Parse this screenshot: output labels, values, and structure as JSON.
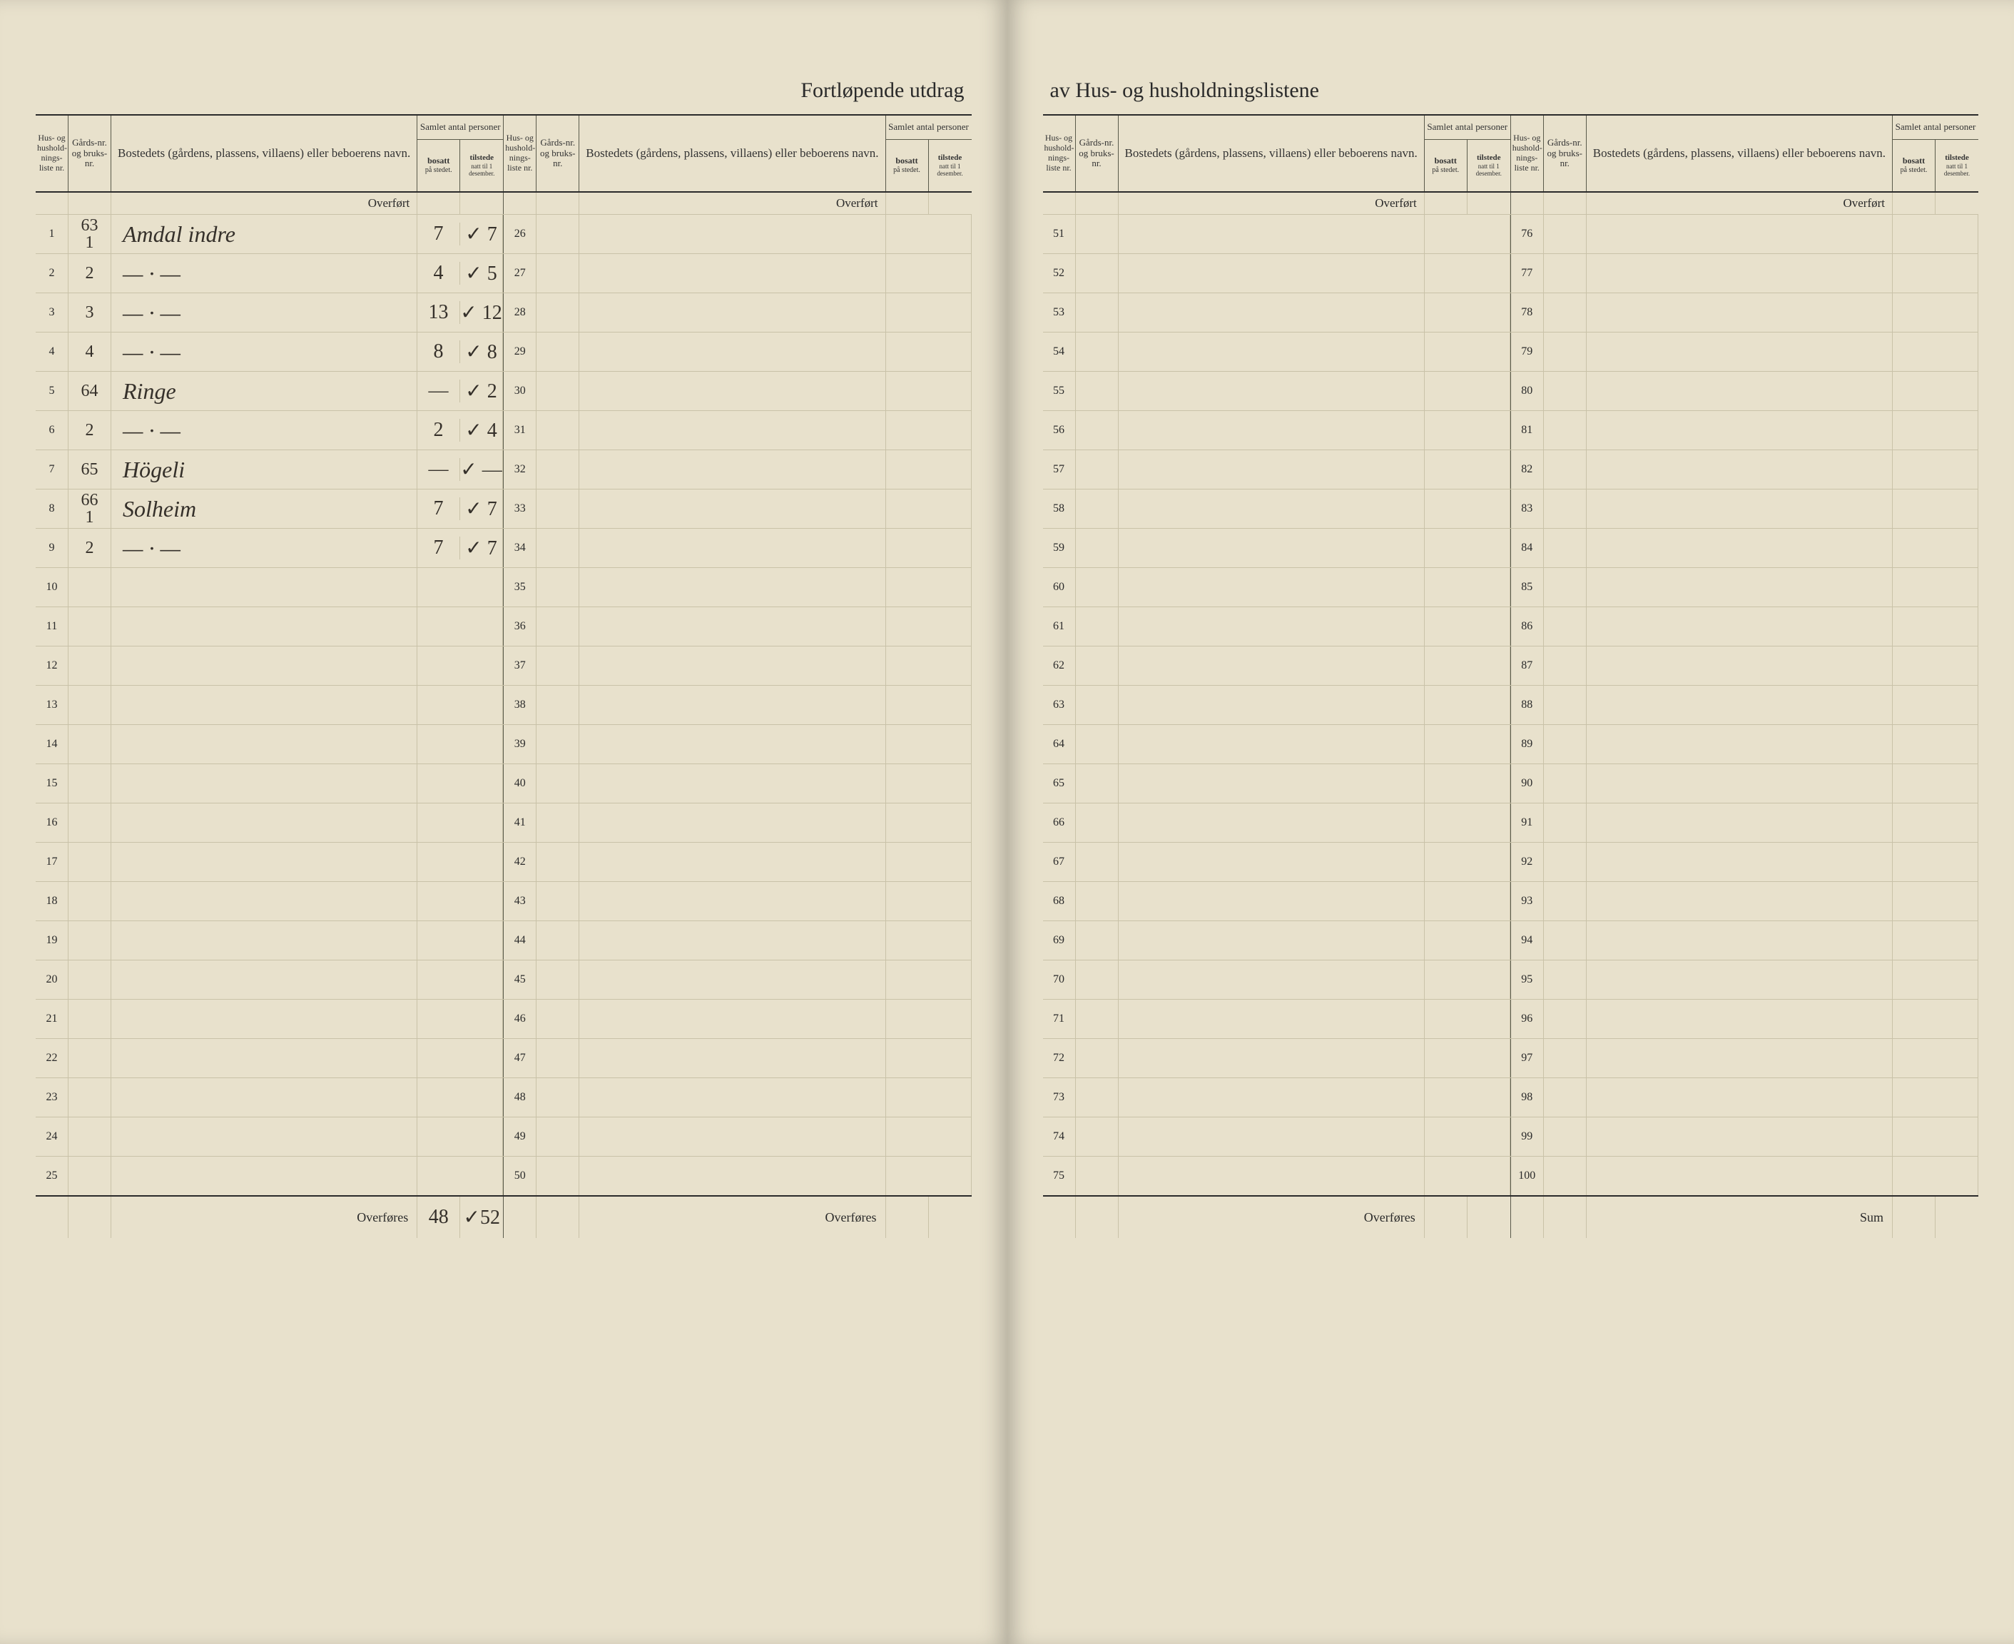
{
  "title_left": "Fortløpende utdrag",
  "title_right": "av Hus- og husholdningslistene",
  "headers": {
    "liste": "Hus- og hushold-nings-liste nr.",
    "gard": "Gårds-nr. og bruks-nr.",
    "name": "Bostedets (gårdens, plassens, villaens) eller beboerens navn.",
    "count_top": "Samlet antal personer",
    "bosatt": "bosatt på stedet.",
    "tilstede": "tilstede natt til 1 desember."
  },
  "overfort": "Overført",
  "overfores": "Overføres",
  "sum": "Sum",
  "footer_totals": {
    "bosatt": "48",
    "tilstede": "52"
  },
  "colors": {
    "paper": "#e8e1cc",
    "rule_dark": "#2a2a2a",
    "rule_light": "#c9c2a8",
    "ink": "#35302a"
  },
  "panels": [
    {
      "start": 1,
      "rows": [
        {
          "n": 1,
          "gard": "63\n1",
          "name": "Amdal indre",
          "bosatt": "7",
          "check": "✓",
          "tilst": "7"
        },
        {
          "n": 2,
          "gard": "2",
          "name": "— · —",
          "bosatt": "4",
          "check": "✓",
          "tilst": "5"
        },
        {
          "n": 3,
          "gard": "3",
          "name": "— · —",
          "bosatt": "13",
          "check": "✓",
          "tilst": "12"
        },
        {
          "n": 4,
          "gard": "4",
          "name": "— · —",
          "bosatt": "8",
          "check": "✓",
          "tilst": "8"
        },
        {
          "n": 5,
          "gard": "64",
          "name": "Ringe",
          "bosatt": "—",
          "check": "✓",
          "tilst": "2"
        },
        {
          "n": 6,
          "gard": "2",
          "name": "— · —",
          "bosatt": "2",
          "check": "✓",
          "tilst": "4"
        },
        {
          "n": 7,
          "gard": "65",
          "name": "Högeli",
          "bosatt": "—",
          "check": "✓",
          "tilst": "—"
        },
        {
          "n": 8,
          "gard": "66\n1",
          "name": "Solheim",
          "bosatt": "7",
          "check": "✓",
          "tilst": "7"
        },
        {
          "n": 9,
          "gard": "2",
          "name": "— · —",
          "bosatt": "7",
          "check": "✓",
          "tilst": "7"
        },
        {
          "n": 10
        },
        {
          "n": 11
        },
        {
          "n": 12
        },
        {
          "n": 13
        },
        {
          "n": 14
        },
        {
          "n": 15
        },
        {
          "n": 16
        },
        {
          "n": 17
        },
        {
          "n": 18
        },
        {
          "n": 19
        },
        {
          "n": 20
        },
        {
          "n": 21
        },
        {
          "n": 22
        },
        {
          "n": 23
        },
        {
          "n": 24
        },
        {
          "n": 25
        }
      ]
    },
    {
      "start": 26,
      "rows": [
        {
          "n": 26
        },
        {
          "n": 27
        },
        {
          "n": 28
        },
        {
          "n": 29
        },
        {
          "n": 30
        },
        {
          "n": 31
        },
        {
          "n": 32
        },
        {
          "n": 33
        },
        {
          "n": 34
        },
        {
          "n": 35
        },
        {
          "n": 36
        },
        {
          "n": 37
        },
        {
          "n": 38
        },
        {
          "n": 39
        },
        {
          "n": 40
        },
        {
          "n": 41
        },
        {
          "n": 42
        },
        {
          "n": 43
        },
        {
          "n": 44
        },
        {
          "n": 45
        },
        {
          "n": 46
        },
        {
          "n": 47
        },
        {
          "n": 48
        },
        {
          "n": 49
        },
        {
          "n": 50
        }
      ]
    },
    {
      "start": 51,
      "rows": [
        {
          "n": 51
        },
        {
          "n": 52
        },
        {
          "n": 53
        },
        {
          "n": 54
        },
        {
          "n": 55
        },
        {
          "n": 56
        },
        {
          "n": 57
        },
        {
          "n": 58
        },
        {
          "n": 59
        },
        {
          "n": 60
        },
        {
          "n": 61
        },
        {
          "n": 62
        },
        {
          "n": 63
        },
        {
          "n": 64
        },
        {
          "n": 65
        },
        {
          "n": 66
        },
        {
          "n": 67
        },
        {
          "n": 68
        },
        {
          "n": 69
        },
        {
          "n": 70
        },
        {
          "n": 71
        },
        {
          "n": 72
        },
        {
          "n": 73
        },
        {
          "n": 74
        },
        {
          "n": 75
        }
      ]
    },
    {
      "start": 76,
      "rows": [
        {
          "n": 76
        },
        {
          "n": 77
        },
        {
          "n": 78
        },
        {
          "n": 79
        },
        {
          "n": 80
        },
        {
          "n": 81
        },
        {
          "n": 82
        },
        {
          "n": 83
        },
        {
          "n": 84
        },
        {
          "n": 85
        },
        {
          "n": 86
        },
        {
          "n": 87
        },
        {
          "n": 88
        },
        {
          "n": 89
        },
        {
          "n": 90
        },
        {
          "n": 91
        },
        {
          "n": 92
        },
        {
          "n": 93
        },
        {
          "n": 94
        },
        {
          "n": 95
        },
        {
          "n": 96
        },
        {
          "n": 97
        },
        {
          "n": 98
        },
        {
          "n": 99
        },
        {
          "n": 100
        }
      ]
    }
  ]
}
